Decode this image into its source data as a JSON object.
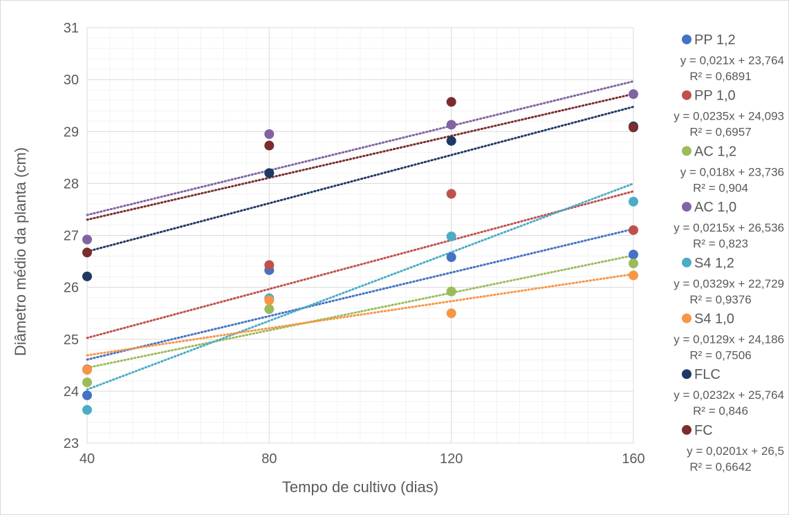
{
  "chart_data": {
    "type": "scatter",
    "title": "",
    "xlabel": "Tempo de cultivo (dias)",
    "ylabel": "Diâmetro médio da planta (cm)",
    "x": [
      40,
      80,
      120,
      160
    ],
    "xticks": [
      "40",
      "80",
      "120",
      "160"
    ],
    "yticks": [
      "23",
      "24",
      "25",
      "26",
      "27",
      "28",
      "29",
      "30",
      "31"
    ],
    "xlim": [
      40,
      160
    ],
    "ylim": [
      23,
      31
    ],
    "grid": true,
    "legend_position": "right",
    "series": [
      {
        "name": "PP 1,2",
        "color": "#4472C4",
        "values": [
          23.92,
          26.33,
          26.58,
          26.63
        ],
        "equation": "y = 0,021x + 23,764",
        "r2": "R² = 0,6891"
      },
      {
        "name": "PP 1,0",
        "color": "#C0504D",
        "values": [
          24.42,
          26.43,
          27.8,
          27.1
        ],
        "equation": "y = 0,0235x + 24,093",
        "r2": "R² = 0,6957"
      },
      {
        "name": "AC 1,2",
        "color": "#9BBB59",
        "values": [
          24.17,
          25.58,
          25.92,
          26.46
        ],
        "equation": "y = 0,018x + 23,736",
        "r2": "R² = 0,904"
      },
      {
        "name": "AC 1,0",
        "color": "#8064A2",
        "values": [
          26.92,
          28.95,
          29.13,
          29.72
        ],
        "equation": "y = 0,0215x + 26,536",
        "r2": "R² = 0,823"
      },
      {
        "name": "S4 1,2",
        "color": "#4BACC6",
        "values": [
          23.64,
          25.79,
          26.98,
          27.65
        ],
        "equation": "y = 0,0329x + 22,729",
        "r2": "R² = 0,9376"
      },
      {
        "name": "S4 1,0",
        "color": "#F79646",
        "values": [
          24.41,
          25.75,
          25.5,
          26.23
        ],
        "equation": "y = 0,0129x + 24,186",
        "r2": "R² = 0,7506"
      },
      {
        "name": "FLC",
        "color": "#1F3864",
        "values": [
          26.21,
          28.2,
          28.82,
          29.1
        ],
        "equation": "y = 0,0232x + 25,764",
        "r2": "R² = 0,846"
      },
      {
        "name": "FC",
        "color": "#7B2C2C",
        "values": [
          26.67,
          28.73,
          29.57,
          29.08
        ],
        "equation": "y = 0,0201x + 26,5",
        "r2": "R² = 0,6642"
      }
    ]
  }
}
